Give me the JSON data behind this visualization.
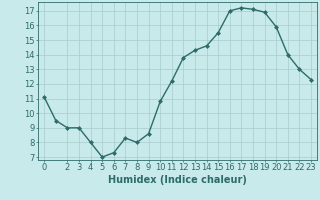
{
  "x": [
    0,
    1,
    2,
    3,
    4,
    5,
    6,
    7,
    8,
    9,
    10,
    11,
    12,
    13,
    14,
    15,
    16,
    17,
    18,
    19,
    20,
    21,
    22,
    23
  ],
  "y": [
    11.1,
    9.5,
    9.0,
    9.0,
    8.0,
    7.0,
    7.3,
    8.3,
    8.0,
    8.6,
    10.8,
    12.2,
    13.8,
    14.3,
    14.6,
    15.5,
    17.0,
    17.2,
    17.1,
    16.9,
    15.9,
    14.0,
    13.0,
    12.3
  ],
  "line_color": "#2e6b6b",
  "marker": "D",
  "marker_size": 2,
  "bg_color": "#c8eaea",
  "grid_color": "#a8cccc",
  "xlabel": "Humidex (Indice chaleur)",
  "xlim": [
    -0.5,
    23.5
  ],
  "ylim": [
    6.8,
    17.6
  ],
  "yticks": [
    7,
    8,
    9,
    10,
    11,
    12,
    13,
    14,
    15,
    16,
    17
  ],
  "xticks": [
    0,
    2,
    3,
    4,
    5,
    6,
    7,
    8,
    9,
    10,
    11,
    12,
    13,
    14,
    15,
    16,
    17,
    18,
    19,
    20,
    21,
    22,
    23
  ],
  "tick_label_fontsize": 6,
  "xlabel_fontsize": 7,
  "axis_color": "#2e6b6b",
  "linewidth": 1.0
}
